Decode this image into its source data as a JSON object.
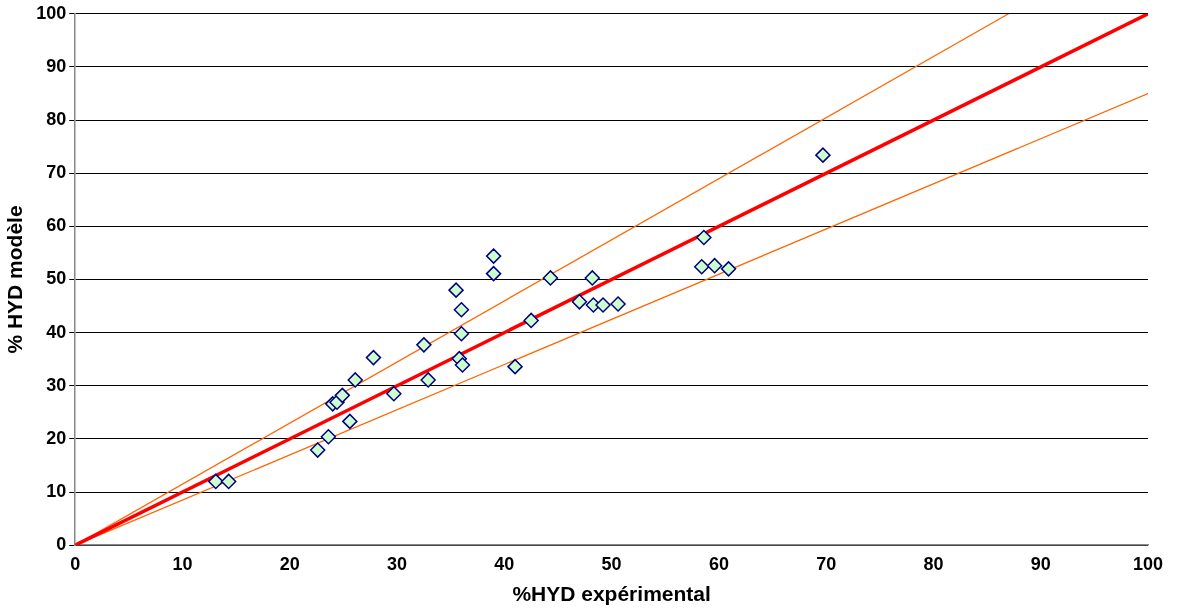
{
  "chart_data": {
    "type": "scatter",
    "xlabel": "%HYD expérimental",
    "ylabel": "% HYD modèle",
    "xlim": [
      0,
      100
    ],
    "ylim": [
      0,
      100
    ],
    "xticks": [
      0,
      10,
      20,
      30,
      40,
      50,
      60,
      70,
      80,
      90,
      100
    ],
    "yticks": [
      0,
      10,
      20,
      30,
      40,
      50,
      60,
      70,
      80,
      90,
      100
    ],
    "grid": "y",
    "legend": false,
    "marker": "diamond",
    "series": [
      {
        "type": "scatter",
        "color": "#ccffcc",
        "x": [
          13.1,
          14.3,
          22.6,
          23.6,
          25.6,
          24.0,
          24.4,
          24.9,
          26.1,
          27.8,
          29.7,
          32.5,
          32.9,
          35.5,
          36.0,
          36.0,
          35.8,
          36.1,
          39.0,
          39.0,
          41.0,
          42.5,
          44.3,
          47.0,
          48.2,
          48.3,
          49.2,
          50.6,
          58.4,
          58.6,
          59.6,
          60.9,
          69.7
        ],
        "values": [
          12.0,
          12.0,
          17.9,
          20.4,
          23.3,
          26.6,
          26.9,
          28.2,
          31.1,
          35.3,
          28.5,
          37.7,
          31.1,
          48.0,
          44.3,
          39.8,
          35.1,
          33.9,
          54.4,
          51.1,
          33.6,
          42.3,
          50.3,
          45.8,
          50.3,
          45.2,
          45.2,
          45.4,
          52.4,
          57.9,
          52.6,
          52.0,
          73.4
        ]
      },
      {
        "type": "line",
        "color": "#ff0000",
        "x": [
          0,
          100
        ],
        "values": [
          0,
          100
        ],
        "marker": "none"
      },
      {
        "type": "line",
        "color": "#ff6600",
        "x": [
          0,
          87
        ],
        "values": [
          0,
          100
        ],
        "marker": "none"
      },
      {
        "type": "line",
        "color": "#ff6600",
        "x": [
          0,
          100
        ],
        "values": [
          0,
          85
        ],
        "marker": "none"
      }
    ]
  }
}
